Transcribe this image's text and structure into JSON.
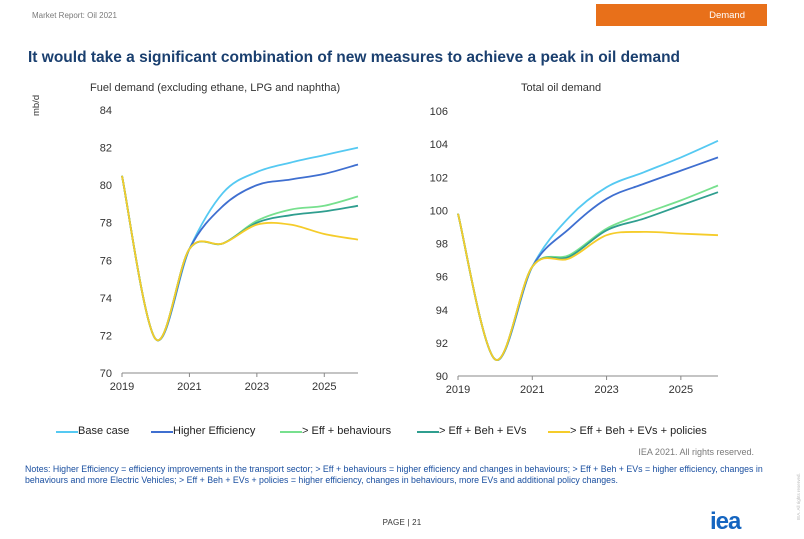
{
  "header": {
    "report_label": "Market Report: Oil 2021",
    "section_badge": "Demand"
  },
  "title": "It would take a significant combination of new measures to achieve a peak in oil demand",
  "unit": "mb/d",
  "colors": {
    "base_case": "#55c9f2",
    "higher_efficiency": "#3f6fd0",
    "eff_behaviours": "#77e08e",
    "eff_beh_evs": "#2f9e8f",
    "eff_beh_evs_policies": "#f5cc2a",
    "title": "#1a3f6f",
    "accent": "#e8701a"
  },
  "legend": [
    {
      "label": "Base case",
      "color": "#55c9f2"
    },
    {
      "label": "Higher Efficiency",
      "color": "#3f6fd0"
    },
    {
      "label": "> Eff  + behaviours",
      "color": "#77e08e"
    },
    {
      "label": "> Eff + Beh + EVs",
      "color": "#2f9e8f"
    },
    {
      "label": "> Eff + Beh + EVs + policies",
      "color": "#f5cc2a"
    }
  ],
  "chart_data": [
    {
      "type": "line",
      "title": "Fuel demand (excluding ethane, LPG and naphtha)",
      "ylabel": "mb/d",
      "x": [
        2019,
        2020,
        2021,
        2022,
        2023,
        2024,
        2025,
        2026
      ],
      "xticks": [
        "2019",
        "2021",
        "2023",
        "2025"
      ],
      "yticks": [
        "70",
        "72",
        "74",
        "76",
        "78",
        "80",
        "82",
        "84"
      ],
      "xlim": [
        2019,
        2026
      ],
      "ylim": [
        70,
        84
      ],
      "series": [
        {
          "name": "Base case",
          "values": [
            80.5,
            71.8,
            76.6,
            79.6,
            80.7,
            81.2,
            81.6,
            82.0
          ]
        },
        {
          "name": "Higher Efficiency",
          "values": [
            80.5,
            71.8,
            76.6,
            78.9,
            80.0,
            80.3,
            80.6,
            81.1
          ]
        },
        {
          "name": "> Eff  + behaviours",
          "values": [
            80.5,
            71.8,
            76.6,
            76.9,
            78.1,
            78.7,
            78.9,
            79.4
          ]
        },
        {
          "name": "> Eff + Beh + EVs",
          "values": [
            80.5,
            71.8,
            76.6,
            76.9,
            78.0,
            78.4,
            78.6,
            78.9
          ]
        },
        {
          "name": "> Eff + Beh + EVs + policies",
          "values": [
            80.5,
            71.8,
            76.6,
            76.9,
            77.9,
            77.9,
            77.4,
            77.1
          ]
        }
      ]
    },
    {
      "type": "line",
      "title": "Total oil demand",
      "ylabel": "mb/d",
      "x": [
        2019,
        2020,
        2021,
        2022,
        2023,
        2024,
        2025,
        2026
      ],
      "xticks": [
        "2019",
        "2021",
        "2023",
        "2025"
      ],
      "yticks": [
        "90",
        "92",
        "94",
        "96",
        "98",
        "100",
        "102",
        "104",
        "106"
      ],
      "xlim": [
        2019,
        2026
      ],
      "ylim": [
        90,
        106
      ],
      "series": [
        {
          "name": "Base case",
          "values": [
            99.8,
            91.0,
            96.6,
            99.6,
            101.4,
            102.3,
            103.2,
            104.2
          ]
        },
        {
          "name": "Higher Efficiency",
          "values": [
            99.8,
            91.0,
            96.6,
            98.9,
            100.7,
            101.6,
            102.4,
            103.2
          ]
        },
        {
          "name": "> Eff  + behaviours",
          "values": [
            99.8,
            91.0,
            96.6,
            97.3,
            98.9,
            99.8,
            100.6,
            101.5
          ]
        },
        {
          "name": "> Eff + Beh + EVs",
          "values": [
            99.8,
            91.0,
            96.6,
            97.2,
            98.8,
            99.5,
            100.3,
            101.1
          ]
        },
        {
          "name": "> Eff + Beh + EVs + policies",
          "values": [
            99.8,
            91.0,
            96.6,
            97.1,
            98.5,
            98.7,
            98.6,
            98.5
          ]
        }
      ]
    }
  ],
  "footer": {
    "copyright": "IEA 2021. All rights reserved.",
    "notes": "Notes: Higher Efficiency = efficiency improvements in the transport sector; > Eff + behaviours = higher efficiency and changes in behaviours; > Eff + Beh + EVs = higher efficiency, changes in behaviours and more Electric Vehicles; > Eff + Beh + EVs + policies = higher efficiency, changes in behaviours, more EVs and additional policy changes.",
    "page": "PAGE | 21",
    "logo": "iea",
    "side_text": "IEA. All rights reserved."
  }
}
